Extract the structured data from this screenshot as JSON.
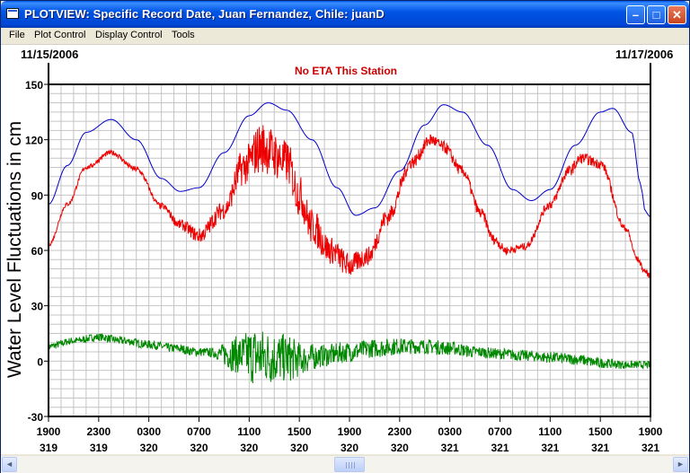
{
  "window": {
    "title": "PLOTVIEW: Specific Record Date, Juan Fernandez, Chile: juanD",
    "min_glyph": "–",
    "max_glyph": "□",
    "close_glyph": "✕"
  },
  "menu": [
    "File",
    "Plot Control",
    "Display Control",
    "Tools"
  ],
  "plot": {
    "start_date": "11/15/2006",
    "end_date": "11/17/2006",
    "notice": "No ETA This Station",
    "colors": {
      "predicted": "#0000CC",
      "observed": "#EE0000",
      "residual": "#008800",
      "notice": "#CC0000"
    }
  },
  "scrollbar": {
    "left_arrow": "◄",
    "right_arrow": "►"
  },
  "chart_data": {
    "type": "line",
    "ylabel": "Water Level Fluctuations in cm",
    "ylim": [
      -30,
      150
    ],
    "yticks": [
      150,
      120,
      90,
      60,
      30,
      0,
      -30
    ],
    "xlim": [
      0,
      48
    ],
    "xticks": [
      {
        "hour": 0,
        "time": "1900",
        "day": "319"
      },
      {
        "hour": 4,
        "time": "2300",
        "day": "319"
      },
      {
        "hour": 8,
        "time": "0300",
        "day": "320"
      },
      {
        "hour": 12,
        "time": "0700",
        "day": "320"
      },
      {
        "hour": 16,
        "time": "1100",
        "day": "320"
      },
      {
        "hour": 20,
        "time": "1500",
        "day": "320"
      },
      {
        "hour": 24,
        "time": "1900",
        "day": "320"
      },
      {
        "hour": 28,
        "time": "2300",
        "day": "320"
      },
      {
        "hour": 32,
        "time": "0300",
        "day": "321"
      },
      {
        "hour": 36,
        "time": "0700",
        "day": "321"
      },
      {
        "hour": 40,
        "time": "1100",
        "day": "321"
      },
      {
        "hour": 44,
        "time": "1500",
        "day": "321"
      },
      {
        "hour": 48,
        "time": "1900",
        "day": "321"
      }
    ],
    "grid": true,
    "series": [
      {
        "key": "predicted",
        "points": [
          [
            0,
            85
          ],
          [
            1.5,
            106
          ],
          [
            3,
            124
          ],
          [
            5,
            131
          ],
          [
            7,
            120
          ],
          [
            9,
            99
          ],
          [
            10.5,
            92
          ],
          [
            12,
            94
          ],
          [
            14,
            113
          ],
          [
            16,
            133
          ],
          [
            17.5,
            140
          ],
          [
            19,
            136
          ],
          [
            21,
            120
          ],
          [
            23,
            94
          ],
          [
            24.5,
            79
          ],
          [
            26,
            83
          ],
          [
            28,
            103
          ],
          [
            30,
            128
          ],
          [
            31.5,
            139
          ],
          [
            33,
            135
          ],
          [
            35,
            117
          ],
          [
            37,
            93
          ],
          [
            38.5,
            87
          ],
          [
            40,
            93
          ],
          [
            42,
            117
          ],
          [
            44,
            135
          ],
          [
            45,
            137
          ],
          [
            46.5,
            124
          ],
          [
            47.2,
            96
          ],
          [
            47.6,
            81
          ],
          [
            48,
            78
          ]
        ]
      },
      {
        "key": "observed",
        "noise_amplitude": [
          [
            0,
            1
          ],
          [
            8,
            1.5
          ],
          [
            14,
            5
          ],
          [
            15.5,
            10
          ],
          [
            17,
            14
          ],
          [
            19,
            12
          ],
          [
            21,
            10
          ],
          [
            23,
            7
          ],
          [
            26,
            5
          ],
          [
            30,
            3.5
          ],
          [
            34,
            3
          ],
          [
            38,
            2
          ],
          [
            42,
            3
          ],
          [
            48,
            1.5
          ]
        ],
        "points": [
          [
            0,
            63
          ],
          [
            1.5,
            85
          ],
          [
            3,
            105
          ],
          [
            5,
            113
          ],
          [
            7,
            104
          ],
          [
            9,
            84
          ],
          [
            10.5,
            74
          ],
          [
            12,
            68
          ],
          [
            14,
            82
          ],
          [
            15.5,
            105
          ],
          [
            17,
            116
          ],
          [
            19,
            108
          ],
          [
            20,
            90
          ],
          [
            21,
            73
          ],
          [
            22.5,
            60
          ],
          [
            24,
            52
          ],
          [
            25.5,
            57
          ],
          [
            27,
            78
          ],
          [
            29,
            108
          ],
          [
            30.5,
            120
          ],
          [
            31.5,
            116
          ],
          [
            33,
            103
          ],
          [
            34.5,
            80
          ],
          [
            35.5,
            66
          ],
          [
            36.5,
            60
          ],
          [
            38,
            62
          ],
          [
            40,
            85
          ],
          [
            41.5,
            103
          ],
          [
            42.5,
            110
          ],
          [
            44,
            107
          ],
          [
            46,
            72
          ],
          [
            47,
            55
          ],
          [
            47.5,
            49
          ],
          [
            48,
            46
          ]
        ]
      },
      {
        "key": "residual",
        "noise_amplitude": [
          [
            0,
            2
          ],
          [
            13,
            2.5
          ],
          [
            15,
            10
          ],
          [
            16.5,
            16
          ],
          [
            17.5,
            15
          ],
          [
            19,
            13
          ],
          [
            20.5,
            8
          ],
          [
            22,
            6
          ],
          [
            26,
            5
          ],
          [
            30,
            4
          ],
          [
            36,
            3
          ],
          [
            42,
            3
          ],
          [
            48,
            2
          ]
        ],
        "points": [
          [
            0,
            8
          ],
          [
            2,
            11
          ],
          [
            4,
            13
          ],
          [
            6,
            11
          ],
          [
            8,
            9
          ],
          [
            10,
            7
          ],
          [
            12,
            5
          ],
          [
            14,
            4
          ],
          [
            16,
            3
          ],
          [
            18,
            2
          ],
          [
            20,
            1
          ],
          [
            22,
            3
          ],
          [
            24,
            5
          ],
          [
            26,
            7
          ],
          [
            28,
            8
          ],
          [
            30,
            8
          ],
          [
            32,
            7
          ],
          [
            34,
            5
          ],
          [
            36,
            4
          ],
          [
            38,
            3
          ],
          [
            40,
            2
          ],
          [
            42,
            1
          ],
          [
            44,
            -1
          ],
          [
            46,
            -2
          ],
          [
            48,
            -2
          ]
        ]
      }
    ]
  }
}
